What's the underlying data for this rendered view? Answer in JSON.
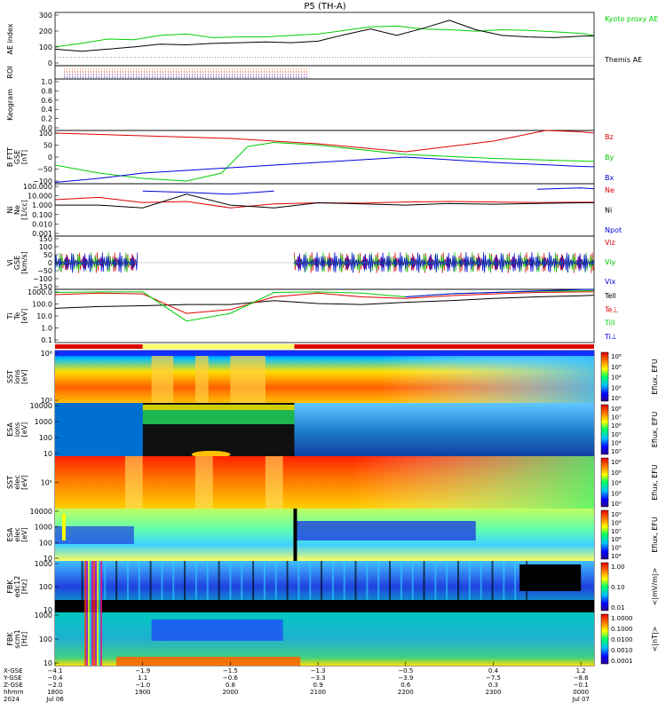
{
  "title": "P5 (TH-A)",
  "chart_data": [
    {
      "type": "line",
      "panel": "ae",
      "ylabel": "AE index",
      "ylim": [
        -60,
        310
      ],
      "yticks": [
        "300",
        "200",
        "100",
        "0"
      ],
      "grid": false,
      "series": [
        {
          "name": "Kyoto proxy AE",
          "color": "#00d000",
          "x_hours": [
            0,
            0.3,
            0.6,
            0.9,
            1.2,
            1.5,
            1.8,
            2.1,
            2.4,
            2.7,
            3.0,
            3.3,
            3.6,
            3.9,
            4.2,
            4.5,
            4.8,
            5.1,
            5.4,
            5.7,
            6.0,
            6.3,
            6.6,
            6.9,
            7.2
          ],
          "values": [
            70,
            95,
            125,
            120,
            150,
            160,
            135,
            140,
            140,
            150,
            160,
            185,
            210,
            215,
            195,
            190,
            180,
            190,
            185,
            175,
            165,
            135,
            150,
            160,
            190
          ]
        },
        {
          "name": "Themis AE",
          "color": "#000000",
          "x_hours": [
            0,
            0.3,
            0.6,
            0.9,
            1.2,
            1.5,
            1.8,
            2.1,
            2.4,
            2.7,
            3.0,
            3.3,
            3.6,
            3.9,
            4.2,
            4.5,
            4.8,
            5.1,
            5.4,
            5.7,
            6.0,
            6.3,
            6.6,
            6.9,
            7.2
          ],
          "values": [
            55,
            40,
            55,
            70,
            90,
            85,
            95,
            100,
            105,
            100,
            110,
            155,
            195,
            150,
            200,
            255,
            190,
            150,
            140,
            135,
            145,
            150,
            160,
            230,
            300
          ]
        }
      ]
    },
    {
      "type": "line",
      "panel": "roi",
      "ylabel": "ROI"
    },
    {
      "type": "line",
      "panel": "keogram",
      "ylabel": "Keogram",
      "yticks": [
        "1.0",
        "0.8",
        "0.6",
        "0.4",
        "0.2",
        "0.0"
      ]
    },
    {
      "type": "line",
      "panel": "bfield",
      "ylabel": [
        "B FTT",
        "GSE",
        "[nT]"
      ],
      "ylim": [
        -100,
        100
      ],
      "yticks": [
        "100",
        "50",
        "0",
        "−50",
        "−100"
      ],
      "series": [
        {
          "name": "Bz",
          "color": "#dd0000",
          "x_hours": [
            0,
            1,
            2,
            3,
            4,
            5,
            5.6,
            6,
            6.6,
            7.2
          ],
          "values": [
            90,
            80,
            70,
            50,
            20,
            60,
            100,
            95,
            75,
            55
          ]
        },
        {
          "name": "By",
          "color": "#00cc00",
          "x_hours": [
            0,
            0.5,
            1,
            1.5,
            1.9,
            2.2,
            2.5,
            3,
            4,
            5,
            6,
            7.2
          ],
          "values": [
            -30,
            -60,
            -80,
            -90,
            -60,
            40,
            55,
            45,
            10,
            -5,
            -15,
            -25
          ]
        },
        {
          "name": "Bx",
          "color": "#0000dd",
          "x_hours": [
            0,
            0.5,
            1,
            2,
            3,
            4,
            5,
            6,
            7.2
          ],
          "values": [
            -95,
            -80,
            -60,
            -40,
            -20,
            0,
            -20,
            -35,
            -45
          ]
        }
      ]
    },
    {
      "type": "line",
      "panel": "density",
      "ylabel": [
        "Ni",
        "Ne",
        "[1/cc]"
      ],
      "yscale": "log",
      "yticks": [
        "100.000",
        "10.000",
        "1.000",
        "0.100",
        "0.010",
        "0.001"
      ],
      "series": [
        {
          "name": "Ne",
          "color": "#dd0000",
          "x_hours": [
            0,
            0.5,
            1,
            1.5,
            2,
            2.5,
            3,
            3.5,
            4,
            4.5,
            5,
            5.5,
            6,
            6.5,
            7.2
          ],
          "values": [
            3,
            5,
            1.6,
            2,
            0.5,
            1.2,
            1.5,
            1.4,
            1.8,
            2,
            1.8,
            1.6,
            1.7,
            1.7,
            2
          ]
        },
        {
          "name": "Ni",
          "color": "#000000",
          "x_hours": [
            0,
            0.5,
            1,
            1.5,
            2,
            2.5,
            3,
            3.5,
            4,
            4.5,
            5,
            5.5,
            6,
            6.5,
            7.2
          ],
          "values": [
            0.9,
            0.9,
            0.5,
            10,
            0.9,
            0.5,
            1.5,
            1.2,
            0.9,
            1.3,
            1.1,
            1.3,
            1.5,
            1.6,
            1.8
          ]
        },
        {
          "name": "Npot",
          "color": "#0000dd",
          "x_hours": [
            0,
            0.5,
            1,
            1.5,
            2,
            2.5,
            3,
            3.5,
            4,
            4.5,
            5,
            5.5,
            6,
            6.5,
            7.2
          ],
          "values": [
            null,
            null,
            20,
            15,
            10,
            20,
            null,
            null,
            null,
            null,
            null,
            30,
            40,
            20,
            10
          ]
        }
      ]
    },
    {
      "type": "scatter",
      "panel": "velocity",
      "ylabel": [
        "Vi",
        "GSE",
        "[km/s]"
      ],
      "ylim": [
        -160,
        160
      ],
      "yticks": [
        "150",
        "100",
        "50",
        "0",
        "−50",
        "−100",
        "−150"
      ],
      "series": [
        {
          "name": "Viz",
          "color": "#dd0000"
        },
        {
          "name": "Viy",
          "color": "#00cc00"
        },
        {
          "name": "Vix",
          "color": "#0000dd"
        }
      ]
    },
    {
      "type": "line",
      "panel": "temperature",
      "ylabel": [
        "Ti",
        "Te",
        "[eV]"
      ],
      "yscale": "log",
      "yticks": [
        "1000.0",
        "100.0",
        "10.0",
        "1.0",
        "0.1"
      ],
      "series": [
        {
          "name": "Tell",
          "color": "#000000",
          "x_hours": [
            0,
            0.5,
            1,
            1.5,
            2,
            2.5,
            3,
            3.5,
            4,
            4.5,
            5,
            5.5,
            6,
            6.5,
            7.2
          ],
          "values": [
            50,
            70,
            80,
            100,
            100,
            200,
            120,
            100,
            150,
            200,
            300,
            400,
            500,
            700,
            800
          ]
        },
        {
          "name": "Te⊥",
          "color": "#dd0000",
          "x_hours": [
            0,
            0.5,
            1,
            1.5,
            2,
            2.5,
            3,
            3.5,
            4,
            4.5,
            5,
            5.5,
            6,
            6.5,
            7.2
          ],
          "values": [
            600,
            800,
            700,
            20,
            40,
            400,
            800,
            400,
            300,
            500,
            700,
            900,
            1000,
            1000,
            1000
          ]
        },
        {
          "name": "Till",
          "color": "#00cc00",
          "x_hours": [
            0,
            0.5,
            1,
            1.5,
            2,
            2.5,
            3,
            3.5,
            4,
            4.5,
            5,
            5.5,
            6,
            6.5,
            7.2
          ],
          "values": [
            900,
            1000,
            1000,
            5,
            20,
            900,
            1000,
            800,
            400,
            700,
            900,
            1100,
            1200,
            1300,
            1300
          ]
        },
        {
          "name": "Ti⊥",
          "color": "#0000dd",
          "x_hours": [
            0,
            0.5,
            1,
            1.5,
            2,
            2.5,
            3,
            3.5,
            4,
            4.5,
            5,
            5.5,
            6,
            6.5,
            7.2
          ],
          "values": [
            null,
            null,
            null,
            null,
            null,
            null,
            null,
            null,
            400,
            700,
            900,
            1200,
            1500,
            1700,
            1900
          ]
        }
      ]
    },
    {
      "type": "heatmap",
      "panel": "sst_i",
      "ylabel": [
        "SST",
        "ions",
        "[eV]"
      ],
      "yticks": [
        "10⁶",
        "10⁵"
      ],
      "colorbar": {
        "label": "Eflux, EFU",
        "ticks": [
          "10⁸",
          "10⁶",
          "10⁴",
          "10²",
          "10⁰"
        ]
      }
    },
    {
      "type": "heatmap",
      "panel": "esa_i",
      "ylabel": [
        "ESA",
        "ions",
        "[eV]"
      ],
      "yticks": [
        "10000",
        "1000",
        "100",
        "10"
      ],
      "colorbar": {
        "label": "Eflux, EFU",
        "ticks": [
          "10⁸",
          "10⁷",
          "10⁶",
          "10⁵",
          "10⁴",
          "10³"
        ]
      }
    },
    {
      "type": "heatmap",
      "panel": "sst_e",
      "ylabel": [
        "SST",
        "elec",
        "[eV]"
      ],
      "yticks": [
        "10⁵"
      ],
      "colorbar": {
        "label": "Eflux, EFU",
        "ticks": [
          "10⁸",
          "10⁶",
          "10⁴",
          "10²",
          "10⁰"
        ]
      }
    },
    {
      "type": "heatmap",
      "panel": "esa_e",
      "ylabel": [
        "ESA",
        "elec",
        "[eV]"
      ],
      "yticks": [
        "10000",
        "1000",
        "100",
        "10"
      ],
      "colorbar": {
        "label": "Eflux, EFU",
        "ticks": [
          "10⁹",
          "10⁸",
          "10⁷",
          "10⁶",
          "10⁵",
          "10⁴"
        ]
      }
    },
    {
      "type": "heatmap",
      "panel": "fbk_e",
      "ylabel": [
        "FBK",
        "edc12",
        "[Hz]"
      ],
      "yticks": [
        "1000",
        "100",
        "10"
      ],
      "colorbar": {
        "label": "<|mV/m|>",
        "ticks": [
          "1.00",
          "0.10",
          "0.01"
        ]
      }
    },
    {
      "type": "heatmap",
      "panel": "fbk_b",
      "ylabel": [
        "FBK",
        "scm1",
        "[Hz]"
      ],
      "yticks": [
        "1000",
        "100",
        "10"
      ],
      "colorbar": {
        "label": "<|nT|>",
        "ticks": [
          "1.0000",
          "0.1000",
          "0.0100",
          "0.0010",
          "0.0001"
        ]
      }
    }
  ],
  "time_axis": {
    "row_labels": [
      "X-GSE",
      "Y-GSE",
      "Z-GSE",
      "hhmm",
      "2024"
    ],
    "columns": [
      {
        "x_hours": 0,
        "vals": [
          "−4.1",
          "−0.4",
          "−2.0",
          "1800",
          "Jul 06"
        ]
      },
      {
        "x_hours": 1,
        "vals": [
          "−1.9",
          "1.1",
          "−1.0",
          "1900",
          ""
        ]
      },
      {
        "x_hours": 2,
        "vals": [
          "−1.5",
          "−0.6",
          "0.8",
          "2000",
          ""
        ]
      },
      {
        "x_hours": 3,
        "vals": [
          "−1.3",
          "−3.3",
          "0.9",
          "2100",
          ""
        ]
      },
      {
        "x_hours": 4,
        "vals": [
          "−0.5",
          "−3.9",
          "0.6",
          "2200",
          ""
        ]
      },
      {
        "x_hours": 5,
        "vals": [
          "0.4",
          "−7.5",
          "0.3",
          "2300",
          ""
        ]
      },
      {
        "x_hours": 6,
        "vals": [
          "1.2",
          "−8.6",
          "−0.1",
          "0000",
          "Jul 07"
        ]
      }
    ]
  },
  "colors": {
    "fast_survey": "#dd0000",
    "slow_survey": "#ffff66"
  }
}
